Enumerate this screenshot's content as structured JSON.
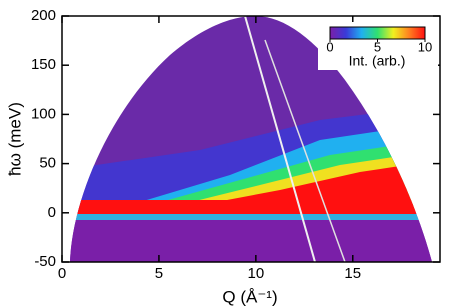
{
  "chart_data": {
    "type": "heatmap",
    "x_label": "Q (Å⁻¹)",
    "y_label": "ħω (meV)",
    "xlim": [
      0,
      19.5
    ],
    "xticks": [
      0,
      5,
      10,
      15
    ],
    "ylim": [
      -50,
      200
    ],
    "yticks": [
      -50,
      0,
      50,
      100,
      150,
      200
    ],
    "colorbar": {
      "label": "Int. (arb.)",
      "lim": [
        0,
        10
      ],
      "ticks": [
        0,
        5,
        10
      ],
      "colors": [
        "#7a1fa8",
        "#3a3ad8",
        "#20b0f0",
        "#30e070",
        "#f0f020",
        "#ff8020",
        "#ff1010"
      ]
    }
  }
}
